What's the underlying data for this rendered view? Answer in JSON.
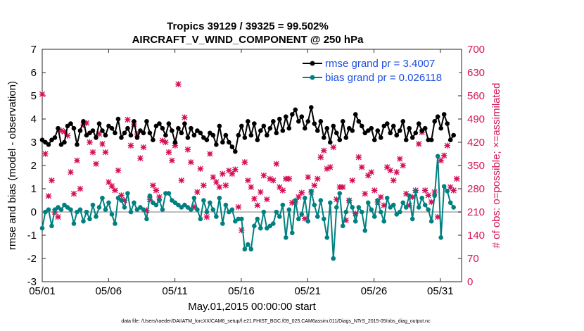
{
  "colors": {
    "rmse": "#000000",
    "bias": "#008080",
    "obs": "#d6145a",
    "zero_line": "#bdbdbd",
    "legend_text": "#1f4fe0"
  },
  "chart_data": {
    "type": "line",
    "title": "Tropics 39129 / 39325 = 99.502%",
    "subtitle": "AIRCRAFT_V_WIND_COMPONENT @ 250 hPa",
    "xlabel": "May.01,2015 00:00:00 start",
    "ylabel": "rmse and bias (model - observation)",
    "y2label": "# of obs: o=possible; ×=assimilated",
    "xlim": [
      0,
      31.6
    ],
    "ylim": [
      -3,
      7
    ],
    "y2lim": [
      0,
      700
    ],
    "x_ticks": [
      0,
      5,
      10,
      15,
      20,
      25,
      30
    ],
    "x_tick_labels": [
      "05/01",
      "05/06",
      "05/11",
      "05/16",
      "05/21",
      "05/26",
      "05/31"
    ],
    "y_ticks": [
      "-3",
      "-2",
      "-1",
      "0",
      "1",
      "2",
      "3",
      "4",
      "5",
      "6",
      "7"
    ],
    "y2_ticks": [
      "0",
      "70",
      "140",
      "210",
      "280",
      "350",
      "420",
      "490",
      "560",
      "630",
      "700"
    ],
    "legend": {
      "position": "top-right",
      "entries": [
        "rmse grand pr = 3.4007",
        "bias grand pr = 0.026118"
      ]
    },
    "series": [
      {
        "name": "rmse",
        "axis": "left",
        "values": [
          3.1,
          3.0,
          2.9,
          3.1,
          3.2,
          3.6,
          2.9,
          3.0,
          3.7,
          3.8,
          3.6,
          2.9,
          3.5,
          3.9,
          3.3,
          3.4,
          3.5,
          3.2,
          3.8,
          3.5,
          3.3,
          3.7,
          3.6,
          3.4,
          4.0,
          3.2,
          3.4,
          3.6,
          3.3,
          3.9,
          3.2,
          3.5,
          3.4,
          3.9,
          3.4,
          3.1,
          3.7,
          3.8,
          3.6,
          3.3,
          3.8,
          3.5,
          3.0,
          3.6,
          3.4,
          3.8,
          3.2,
          3.6,
          3.3,
          3.5,
          3.4,
          3.2,
          3.1,
          3.4,
          3.3,
          2.9,
          3.7,
          3.0,
          3.3,
          3.0,
          2.8,
          2.6,
          3.3,
          3.7,
          3.2,
          3.9,
          3.3,
          3.8,
          3.1,
          3.5,
          3.7,
          3.3,
          3.6,
          3.9,
          3.4,
          4.0,
          3.5,
          4.1,
          3.6,
          4.2,
          4.4,
          3.9,
          4.1,
          3.6,
          3.9,
          4.5,
          3.8,
          3.5,
          3.9,
          3.2,
          3.6,
          3.0,
          3.7,
          3.4,
          3.1,
          3.9,
          3.2,
          3.6,
          3.5,
          4.2,
          3.9,
          3.7,
          3.4,
          3.5,
          3.6,
          3.1,
          3.5,
          3.2,
          3.7,
          3.8,
          3.4,
          3.7,
          3.3,
          3.5,
          3.9,
          3.1,
          3.6,
          3.2,
          3.4,
          3.8,
          3.5,
          3.6,
          3.1,
          3.1,
          3.9,
          4.1,
          3.6,
          4.2,
          3.8,
          3.1,
          3.3
        ]
      },
      {
        "name": "bias",
        "axis": "left",
        "values": [
          -0.7,
          0.0,
          0.1,
          -0.6,
          0.1,
          0.2,
          0.1,
          0.3,
          0.2,
          0.1,
          -0.5,
          0.0,
          0.1,
          -0.4,
          0.0,
          -0.3,
          0.3,
          -0.2,
          0.2,
          0.6,
          0.1,
          0.4,
          -0.1,
          -0.5,
          0.6,
          0.5,
          0.2,
          0.8,
          0.0,
          0.4,
          0.1,
          0.2,
          0.1,
          -0.3,
          0.7,
          0.4,
          0.3,
          0.5,
          0.1,
          0.8,
          0.8,
          0.5,
          0.4,
          0.3,
          0.2,
          0.3,
          0.2,
          0.1,
          0.6,
          0.1,
          -0.3,
          0.5,
          0.0,
          0.4,
          0.1,
          -0.2,
          0.6,
          -0.5,
          0.3,
          0.0,
          0.1,
          -0.4,
          -0.3,
          -0.3,
          -1.6,
          -1.4,
          -1.6,
          -0.6,
          -0.3,
          -0.7,
          0.0,
          -0.7,
          -0.6,
          -0.5,
          0.0,
          -0.2,
          0.3,
          -1.1,
          0.1,
          -0.9,
          0.5,
          -0.3,
          -0.1,
          0.6,
          -0.4,
          0.9,
          0.3,
          -0.2,
          0.5,
          -0.3,
          -1.1,
          0.4,
          -2.0,
          0.2,
          0.8,
          -0.6,
          0.0,
          0.5,
          0.2,
          -0.4,
          0.2,
          0.0,
          -0.8,
          0.4,
          0.1,
          -0.2,
          0.5,
          0.0,
          -0.4,
          0.6,
          0.2,
          0.3,
          -0.1,
          0.0,
          0.4,
          0.2,
          0.7,
          -0.3,
          0.9,
          0.2,
          0.6,
          0.3,
          0.1,
          -0.4,
          0.7,
          2.4,
          -1.1,
          1.1,
          0.9,
          0.4,
          0.2
        ]
      },
      {
        "name": "obs_possible",
        "axis": "right",
        "values": [
          565,
          385,
          258,
          305,
          210,
          195,
          455,
          452,
          440,
          330,
          265,
          365,
          280,
          472,
          478,
          420,
          390,
          355,
          445,
          415,
          390,
          300,
          288,
          275,
          335,
          260,
          245,
          488,
          410,
          475,
          445,
          372,
          405,
          215,
          248,
          290,
          275,
          255,
          425,
          420,
          390,
          365,
          410,
          595,
          305,
          495,
          398,
          360,
          225,
          270,
          340,
          290,
          195,
          385,
          315,
          300,
          285,
          325,
          290,
          335,
          325,
          338,
          225,
          155,
          360,
          305,
          285,
          250,
          230,
          270,
          320,
          248,
          310,
          305,
          355,
          285,
          275,
          310,
          310,
          238,
          240,
          255,
          268,
          190,
          315,
          270,
          290,
          310,
          375,
          395,
          340,
          345,
          405,
          248,
          285,
          285,
          185,
          245,
          305,
          205,
          375,
          345,
          265,
          320,
          330,
          275,
          240,
          255,
          230,
          345,
          335,
          305,
          330,
          370,
          350,
          265,
          230,
          255,
          275,
          415,
          450,
          275,
          260,
          240,
          270,
          195,
          365,
          380,
          410,
          285,
          275,
          310
        ]
      }
    ]
  },
  "footer": "data file: /Users/raeder/DAI/ATM_forcXX/CAM6_setup/f.e21.FHIST_BGC.f09_025.CAM6assim.011/Diags_NTrS_2015-05/obs_diag_output.nc"
}
